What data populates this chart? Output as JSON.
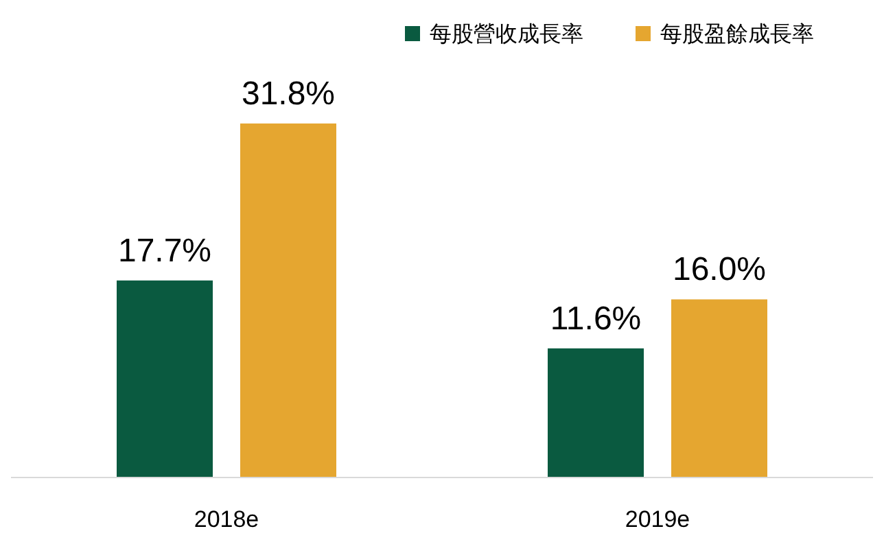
{
  "chart_data": {
    "type": "bar",
    "categories": [
      "2018e",
      "2019e"
    ],
    "legend": "top right",
    "series": [
      {
        "name": "每股營收成長率",
        "color": "#0a5a40",
        "values": [
          17.7,
          11.6
        ],
        "value_labels": [
          "17.7%",
          "11.6%"
        ]
      },
      {
        "name": "每股盈餘成長率",
        "color": "#e5a630",
        "values": [
          31.8,
          16.0
        ],
        "value_labels": [
          "31.8%",
          "16.0%"
        ]
      }
    ]
  }
}
